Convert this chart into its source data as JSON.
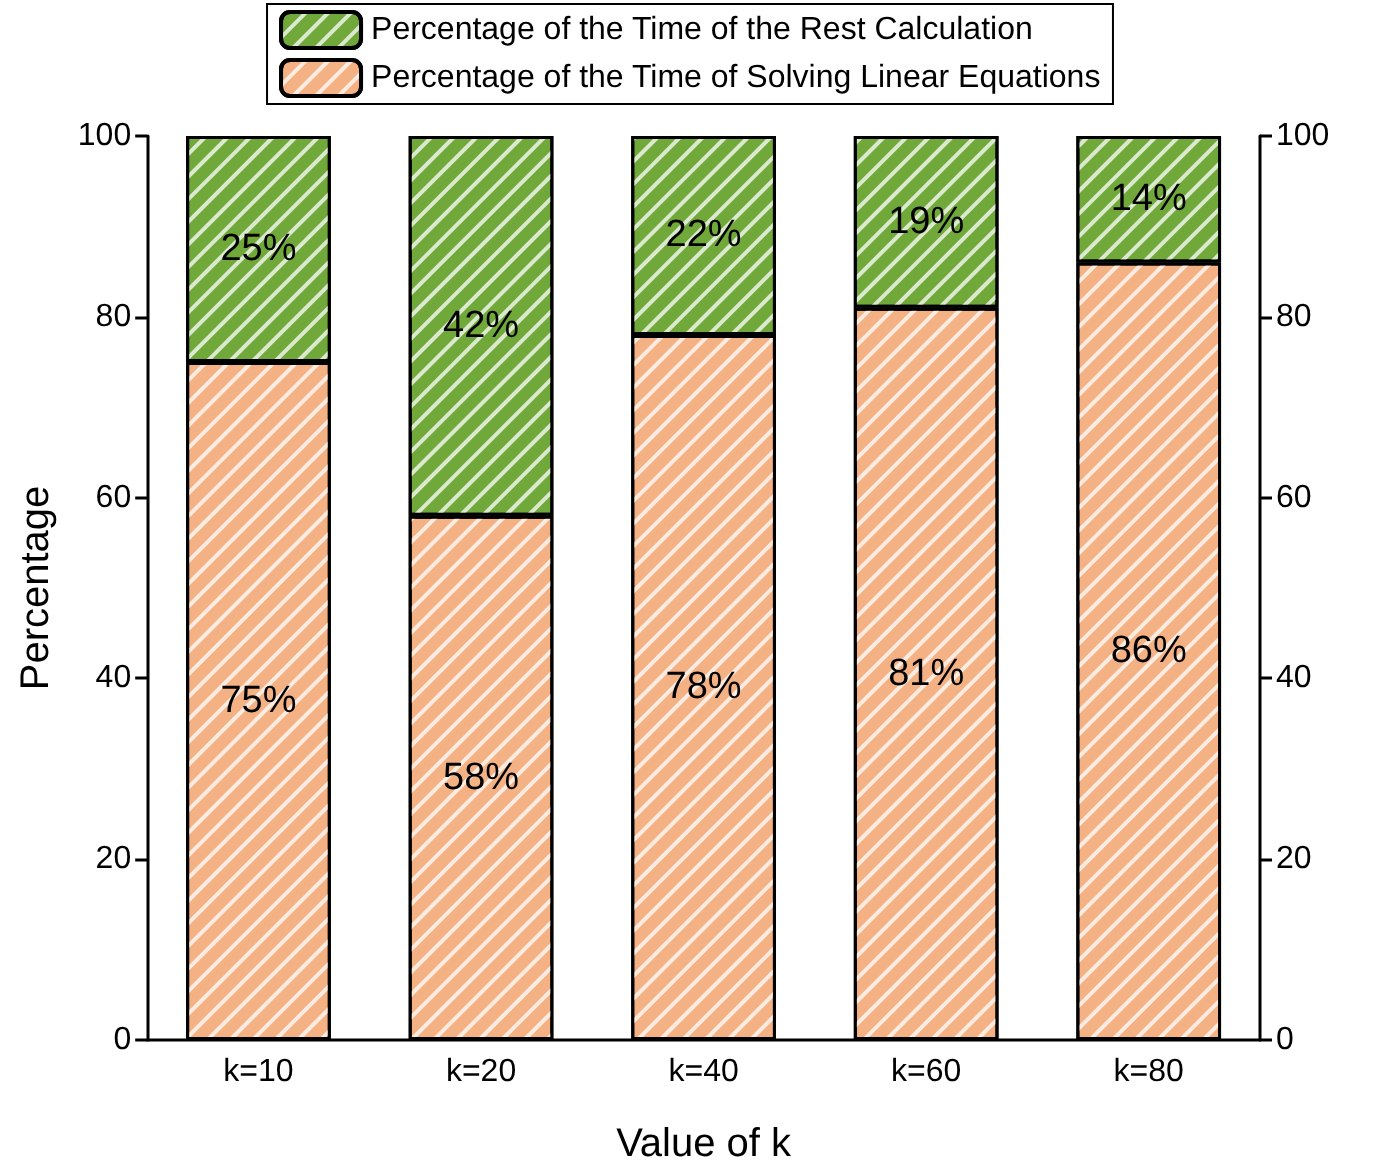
{
  "chart_data": {
    "type": "bar",
    "stacked": true,
    "xlabel": "Value of k",
    "ylabel": "Percentage",
    "categories": [
      "k=10",
      "k=20",
      "k=40",
      "k=60",
      "k=80"
    ],
    "series": [
      {
        "name": "Percentage of the Time of Solving Linear Equations",
        "color": "#f4b183",
        "values": [
          75,
          58,
          78,
          81,
          86
        ],
        "value_labels": [
          "75%",
          "58%",
          "78%",
          "81%",
          "86%"
        ]
      },
      {
        "name": "Percentage of the Time of the Rest Calculation",
        "color": "#70a83a",
        "values": [
          25,
          42,
          22,
          19,
          14
        ],
        "value_labels": [
          "25%",
          "42%",
          "22%",
          "19%",
          "14%"
        ]
      }
    ],
    "ylim": [
      0,
      100
    ],
    "yticks": [
      0,
      20,
      40,
      60,
      80,
      100
    ],
    "y2lim": [
      0,
      100
    ],
    "y2ticks": [
      0,
      20,
      40,
      60,
      80,
      100
    ],
    "grid": false,
    "legend": "top"
  }
}
